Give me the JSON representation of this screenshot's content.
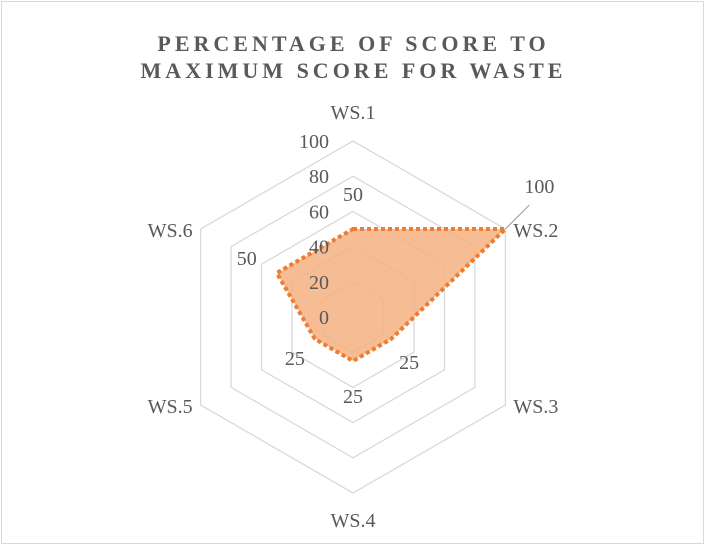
{
  "chart_data": {
    "type": "radar",
    "title": [
      "PERCENTAGE OF SCORE TO",
      "MAXIMUM SCORE FOR WASTE"
    ],
    "categories": [
      "WS.1",
      "WS.2",
      "WS.3",
      "WS.4",
      "WS.5",
      "WS.6"
    ],
    "axis_ticks": [
      "0",
      "20",
      "40",
      "60",
      "80",
      "100"
    ],
    "rmax": 100,
    "series": [
      {
        "values": [
          50,
          100,
          25,
          25,
          25,
          50
        ]
      }
    ],
    "data_labels": [
      "50",
      "100",
      "25",
      "25",
      "25",
      "50"
    ],
    "colors": {
      "fill": "#f4b183",
      "line": "#ed7d31",
      "grid": "#d9d9d9",
      "text": "#595959"
    },
    "legend": "none"
  }
}
